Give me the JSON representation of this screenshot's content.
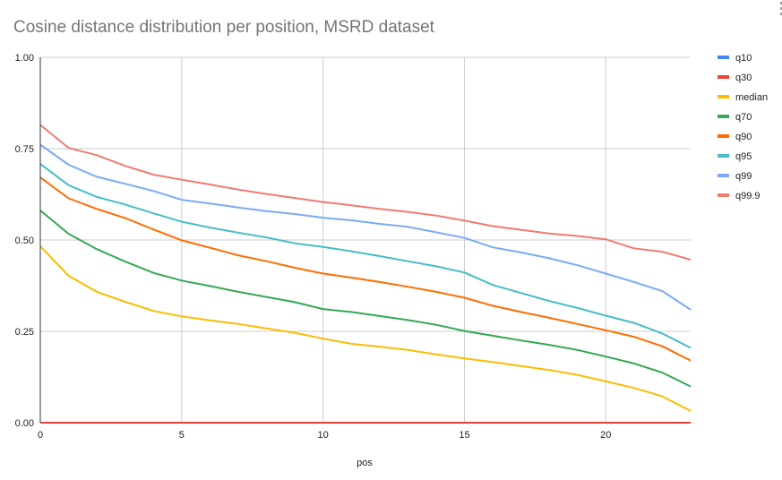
{
  "chart_data": {
    "type": "line",
    "title": "Cosine distance distribution per position, MSRD dataset",
    "xlabel": "pos",
    "ylabel": "",
    "xlim": [
      0,
      23
    ],
    "ylim": [
      0,
      1
    ],
    "grid": true,
    "legend": "right",
    "x_ticks": [
      "0",
      "5",
      "10",
      "15",
      "20"
    ],
    "x_tick_values": [
      0,
      5,
      10,
      15,
      20
    ],
    "y_ticks": [
      "0.00",
      "0.25",
      "0.50",
      "0.75",
      "1.00"
    ],
    "y_tick_values": [
      0,
      0.25,
      0.5,
      0.75,
      1.0
    ],
    "x": [
      0,
      1,
      2,
      3,
      4,
      5,
      6,
      7,
      8,
      9,
      10,
      11,
      12,
      13,
      14,
      15,
      16,
      17,
      18,
      19,
      20,
      21,
      22,
      23
    ],
    "series": [
      {
        "name": "q10",
        "color": "#4285f4",
        "values": [
          0,
          0,
          0,
          0,
          0,
          0,
          0,
          0,
          0,
          0,
          0,
          0,
          0,
          0,
          0,
          0,
          0,
          0,
          0,
          0,
          0,
          0,
          0,
          0
        ]
      },
      {
        "name": "q30",
        "color": "#ea4335",
        "values": [
          0,
          0,
          0,
          0,
          0,
          0,
          0,
          0,
          0,
          0,
          0,
          0,
          0,
          0,
          0,
          0,
          0,
          0,
          0,
          0,
          0,
          0,
          0,
          0
        ]
      },
      {
        "name": "median",
        "color": "#fbbc04",
        "values": [
          0.483,
          0.402,
          0.358,
          0.331,
          0.306,
          0.291,
          0.28,
          0.27,
          0.258,
          0.246,
          0.23,
          0.216,
          0.208,
          0.199,
          0.187,
          0.176,
          0.166,
          0.155,
          0.144,
          0.131,
          0.113,
          0.095,
          0.072,
          0.032
        ]
      },
      {
        "name": "q70",
        "color": "#34a853",
        "values": [
          0.581,
          0.517,
          0.475,
          0.441,
          0.41,
          0.389,
          0.374,
          0.358,
          0.344,
          0.33,
          0.311,
          0.303,
          0.292,
          0.281,
          0.268,
          0.251,
          0.238,
          0.225,
          0.213,
          0.199,
          0.181,
          0.162,
          0.137,
          0.099
        ]
      },
      {
        "name": "q90",
        "color": "#ff6d01",
        "values": [
          0.671,
          0.614,
          0.585,
          0.56,
          0.529,
          0.499,
          0.479,
          0.458,
          0.442,
          0.424,
          0.408,
          0.397,
          0.385,
          0.372,
          0.358,
          0.342,
          0.32,
          0.303,
          0.287,
          0.27,
          0.253,
          0.235,
          0.209,
          0.17
        ]
      },
      {
        "name": "q95",
        "color": "#46bdc6",
        "values": [
          0.708,
          0.65,
          0.618,
          0.597,
          0.573,
          0.55,
          0.534,
          0.52,
          0.507,
          0.491,
          0.481,
          0.469,
          0.456,
          0.442,
          0.428,
          0.411,
          0.377,
          0.355,
          0.333,
          0.314,
          0.293,
          0.273,
          0.244,
          0.205
        ]
      },
      {
        "name": "q99",
        "color": "#7baaf7",
        "values": [
          0.761,
          0.706,
          0.673,
          0.654,
          0.634,
          0.61,
          0.6,
          0.589,
          0.579,
          0.571,
          0.561,
          0.554,
          0.544,
          0.536,
          0.521,
          0.506,
          0.48,
          0.466,
          0.45,
          0.431,
          0.408,
          0.385,
          0.36,
          0.309
        ]
      },
      {
        "name": "q99.9",
        "color": "#f07b72",
        "values": [
          0.815,
          0.752,
          0.732,
          0.703,
          0.679,
          0.665,
          0.652,
          0.638,
          0.626,
          0.615,
          0.604,
          0.595,
          0.585,
          0.577,
          0.567,
          0.553,
          0.538,
          0.528,
          0.518,
          0.511,
          0.502,
          0.477,
          0.468,
          0.446
        ]
      }
    ]
  },
  "menu": {
    "icon": "more-vert-icon"
  }
}
